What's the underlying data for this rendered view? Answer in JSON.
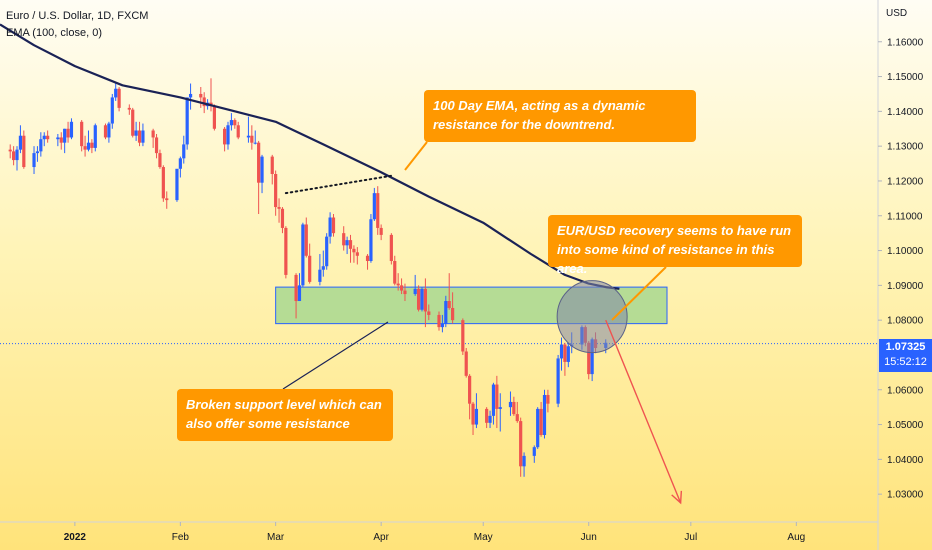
{
  "legend": {
    "symbol": "Euro / U.S. Dollar, 1D, FXCM",
    "indicator": "EMA (100, close, 0)"
  },
  "currency": "USD",
  "last_price": {
    "value": "1.07325",
    "countdown": "15:52:12"
  },
  "callouts": [
    {
      "text": "100 Day EMA, acting as a dynamic resistance for the downtrend."
    },
    {
      "text": "EUR/USD recovery seems to have run into some kind of resistance in this area."
    },
    {
      "text": "Broken support level which can also offer some resistance"
    }
  ],
  "colors": {
    "up": "#2962ff",
    "down": "#ef5350",
    "ema": "#1a2256",
    "zone_fill": "#a8d890",
    "zone_border": "#2962ff",
    "callout": "#ff9800",
    "arrow": "#ef5350"
  },
  "chart_data": {
    "type": "candlestick",
    "title": "Euro / U.S. Dollar, 1D, FXCM",
    "xlabel": "",
    "ylabel": "USD",
    "ylim": [
      1.022,
      1.172
    ],
    "y_ticks": [
      "1.16000",
      "1.15000",
      "1.14000",
      "1.13000",
      "1.12000",
      "1.11000",
      "1.10000",
      "1.09000",
      "1.08000",
      "1.06000",
      "1.05000",
      "1.04000",
      "1.03000"
    ],
    "x_ticks": [
      "2022",
      "Feb",
      "Mar",
      "Apr",
      "May",
      "Jun",
      "Jul",
      "Aug"
    ],
    "x_tick_dates": [
      "2022-01-01",
      "2022-02-01",
      "2022-03-01",
      "2022-04-01",
      "2022-05-01",
      "2022-06-01",
      "2022-07-01",
      "2022-08-01"
    ],
    "x_range": [
      "2021-12-10",
      "2022-08-25"
    ],
    "current_price": 1.07325,
    "ema": {
      "name": "EMA (100, close, 0)",
      "points": [
        [
          "2021-12-10",
          1.165
        ],
        [
          "2021-12-20",
          1.159
        ],
        [
          "2022-01-01",
          1.153
        ],
        [
          "2022-01-15",
          1.1475
        ],
        [
          "2022-02-01",
          1.144
        ],
        [
          "2022-02-15",
          1.1405
        ],
        [
          "2022-03-01",
          1.137
        ],
        [
          "2022-03-15",
          1.1305
        ],
        [
          "2022-04-01",
          1.1225
        ],
        [
          "2022-04-15",
          1.1155
        ],
        [
          "2022-05-01",
          1.108
        ],
        [
          "2022-05-15",
          1.099
        ],
        [
          "2022-05-25",
          1.093
        ],
        [
          "2022-06-01",
          1.0905
        ],
        [
          "2022-06-06",
          1.0895
        ],
        [
          "2022-06-10",
          1.089
        ]
      ]
    },
    "ohlc": [
      [
        "2021-12-13",
        1.129,
        1.1305,
        1.1265,
        1.1285
      ],
      [
        "2021-12-14",
        1.1285,
        1.13,
        1.1245,
        1.126
      ],
      [
        "2021-12-15",
        1.126,
        1.13,
        1.123,
        1.129
      ],
      [
        "2021-12-16",
        1.129,
        1.136,
        1.128,
        1.133
      ],
      [
        "2021-12-17",
        1.133,
        1.1345,
        1.1235,
        1.124
      ],
      [
        "2021-12-20",
        1.124,
        1.13,
        1.122,
        1.128
      ],
      [
        "2021-12-21",
        1.128,
        1.13,
        1.1255,
        1.1285
      ],
      [
        "2021-12-22",
        1.1285,
        1.134,
        1.127,
        1.132
      ],
      [
        "2021-12-23",
        1.132,
        1.134,
        1.13,
        1.133
      ],
      [
        "2021-12-24",
        1.133,
        1.1345,
        1.131,
        1.132
      ],
      [
        "2021-12-27",
        1.132,
        1.1335,
        1.13,
        1.1325
      ],
      [
        "2021-12-28",
        1.1325,
        1.134,
        1.129,
        1.131
      ],
      [
        "2021-12-29",
        1.131,
        1.135,
        1.128,
        1.135
      ],
      [
        "2021-12-30",
        1.135,
        1.137,
        1.131,
        1.1325
      ],
      [
        "2021-12-31",
        1.1325,
        1.138,
        1.132,
        1.137
      ],
      [
        "2022-01-03",
        1.137,
        1.1375,
        1.1285,
        1.13
      ],
      [
        "2022-01-04",
        1.13,
        1.133,
        1.127,
        1.129
      ],
      [
        "2022-01-05",
        1.129,
        1.1345,
        1.1285,
        1.131
      ],
      [
        "2022-01-06",
        1.131,
        1.132,
        1.128,
        1.1295
      ],
      [
        "2022-01-07",
        1.1295,
        1.1365,
        1.1285,
        1.136
      ],
      [
        "2022-01-10",
        1.136,
        1.1365,
        1.132,
        1.1325
      ],
      [
        "2022-01-11",
        1.1325,
        1.137,
        1.131,
        1.1365
      ],
      [
        "2022-01-12",
        1.1365,
        1.145,
        1.135,
        1.144
      ],
      [
        "2022-01-13",
        1.144,
        1.148,
        1.143,
        1.1465
      ],
      [
        "2022-01-14",
        1.1465,
        1.147,
        1.14,
        1.141
      ],
      [
        "2022-01-17",
        1.141,
        1.142,
        1.139,
        1.1405
      ],
      [
        "2022-01-18",
        1.1405,
        1.141,
        1.1325,
        1.133
      ],
      [
        "2022-01-19",
        1.133,
        1.137,
        1.1315,
        1.1345
      ],
      [
        "2022-01-20",
        1.1345,
        1.137,
        1.13,
        1.131
      ],
      [
        "2022-01-21",
        1.131,
        1.1365,
        1.13,
        1.1345
      ],
      [
        "2022-01-24",
        1.1345,
        1.135,
        1.1295,
        1.1325
      ],
      [
        "2022-01-25",
        1.1325,
        1.1335,
        1.1265,
        1.128
      ],
      [
        "2022-01-26",
        1.128,
        1.129,
        1.1235,
        1.124
      ],
      [
        "2022-01-27",
        1.124,
        1.1245,
        1.114,
        1.115
      ],
      [
        "2022-01-28",
        1.115,
        1.117,
        1.112,
        1.1145
      ],
      [
        "2022-01-31",
        1.1145,
        1.123,
        1.114,
        1.1235
      ],
      [
        "2022-02-01",
        1.1235,
        1.127,
        1.121,
        1.1265
      ],
      [
        "2022-02-02",
        1.1265,
        1.133,
        1.125,
        1.1305
      ],
      [
        "2022-02-03",
        1.1305,
        1.144,
        1.129,
        1.144
      ],
      [
        "2022-02-04",
        1.144,
        1.148,
        1.1405,
        1.145
      ],
      [
        "2022-02-07",
        1.145,
        1.147,
        1.141,
        1.144
      ],
      [
        "2022-02-08",
        1.144,
        1.1455,
        1.1395,
        1.1415
      ],
      [
        "2022-02-09",
        1.1415,
        1.1435,
        1.1405,
        1.1425
      ],
      [
        "2022-02-10",
        1.1425,
        1.1495,
        1.14,
        1.1415
      ],
      [
        "2022-02-11",
        1.1415,
        1.142,
        1.1345,
        1.135
      ],
      [
        "2022-02-14",
        1.135,
        1.1355,
        1.1285,
        1.1305
      ],
      [
        "2022-02-15",
        1.1305,
        1.137,
        1.129,
        1.136
      ],
      [
        "2022-02-16",
        1.136,
        1.1395,
        1.1345,
        1.1375
      ],
      [
        "2022-02-17",
        1.1375,
        1.138,
        1.135,
        1.136
      ],
      [
        "2022-02-18",
        1.136,
        1.137,
        1.132,
        1.1325
      ],
      [
        "2022-02-21",
        1.1325,
        1.1385,
        1.131,
        1.133
      ],
      [
        "2022-02-22",
        1.133,
        1.136,
        1.129,
        1.131
      ],
      [
        "2022-02-23",
        1.131,
        1.1345,
        1.1305,
        1.131
      ],
      [
        "2022-02-24",
        1.131,
        1.1315,
        1.1105,
        1.1195
      ],
      [
        "2022-02-25",
        1.1195,
        1.1275,
        1.1165,
        1.127
      ],
      [
        "2022-02-28",
        1.127,
        1.1275,
        1.119,
        1.122
      ],
      [
        "2022-03-01",
        1.122,
        1.123,
        1.11,
        1.1125
      ],
      [
        "2022-03-02",
        1.1125,
        1.115,
        1.108,
        1.112
      ],
      [
        "2022-03-03",
        1.112,
        1.1125,
        1.105,
        1.1065
      ],
      [
        "2022-03-04",
        1.1065,
        1.107,
        1.092,
        1.093
      ],
      [
        "2022-03-07",
        1.093,
        1.0935,
        1.0805,
        1.0855
      ],
      [
        "2022-03-08",
        1.0855,
        1.0935,
        1.0855,
        1.09
      ],
      [
        "2022-03-09",
        1.09,
        1.108,
        1.0895,
        1.1075
      ],
      [
        "2022-03-10",
        1.1075,
        1.1095,
        1.098,
        1.0985
      ],
      [
        "2022-03-11",
        1.0985,
        1.102,
        1.0905,
        1.091
      ],
      [
        "2022-03-14",
        1.091,
        1.099,
        1.09,
        1.0945
      ],
      [
        "2022-03-15",
        1.0945,
        1.1,
        1.0925,
        1.0955
      ],
      [
        "2022-03-16",
        1.0955,
        1.105,
        1.0945,
        1.104
      ],
      [
        "2022-03-17",
        1.104,
        1.111,
        1.102,
        1.1095
      ],
      [
        "2022-03-18",
        1.1095,
        1.1105,
        1.104,
        1.105
      ],
      [
        "2022-03-21",
        1.105,
        1.107,
        1.1,
        1.1015
      ],
      [
        "2022-03-22",
        1.1015,
        1.104,
        1.099,
        1.103
      ],
      [
        "2022-03-23",
        1.103,
        1.1045,
        1.0965,
        1.1005
      ],
      [
        "2022-03-24",
        1.1005,
        1.1015,
        1.0965,
        1.0995
      ],
      [
        "2022-03-25",
        1.0995,
        1.101,
        1.096,
        1.0985
      ],
      [
        "2022-03-28",
        1.0985,
        1.099,
        1.0945,
        1.097
      ],
      [
        "2022-03-29",
        1.097,
        1.1105,
        1.0965,
        1.109
      ],
      [
        "2022-03-30",
        1.109,
        1.118,
        1.1085,
        1.1165
      ],
      [
        "2022-03-31",
        1.1165,
        1.1185,
        1.1045,
        1.1065
      ],
      [
        "2022-04-01",
        1.1065,
        1.1075,
        1.103,
        1.1045
      ],
      [
        "2022-04-04",
        1.1045,
        1.105,
        1.096,
        1.097
      ],
      [
        "2022-04-05",
        1.097,
        1.0985,
        1.09,
        1.0905
      ],
      [
        "2022-04-06",
        1.0905,
        1.0935,
        1.0885,
        1.09
      ],
      [
        "2022-04-07",
        1.09,
        1.092,
        1.0875,
        1.0885
      ],
      [
        "2022-04-08",
        1.0885,
        1.0905,
        1.0855,
        1.0875
      ],
      [
        "2022-04-11",
        1.0875,
        1.093,
        1.087,
        1.089
      ],
      [
        "2022-04-12",
        1.089,
        1.09,
        1.0825,
        1.083
      ],
      [
        "2022-04-13",
        1.083,
        1.0895,
        1.0825,
        1.089
      ],
      [
        "2022-04-14",
        1.089,
        1.092,
        1.078,
        1.0825
      ],
      [
        "2022-04-15",
        1.0825,
        1.0845,
        1.08,
        1.0815
      ],
      [
        "2022-04-18",
        1.0815,
        1.0825,
        1.077,
        1.078
      ],
      [
        "2022-04-19",
        1.078,
        1.0815,
        1.0765,
        1.079
      ],
      [
        "2022-04-20",
        1.079,
        1.087,
        1.078,
        1.0855
      ],
      [
        "2022-04-21",
        1.0855,
        1.0935,
        1.083,
        1.0835
      ],
      [
        "2022-04-22",
        1.0835,
        1.088,
        1.079,
        1.08
      ],
      [
        "2022-04-25",
        1.08,
        1.0805,
        1.07,
        1.071
      ],
      [
        "2022-04-26",
        1.071,
        1.072,
        1.0635,
        1.064
      ],
      [
        "2022-04-27",
        1.064,
        1.0645,
        1.0515,
        1.056
      ],
      [
        "2022-04-28",
        1.056,
        1.0565,
        1.047,
        1.05
      ],
      [
        "2022-04-29",
        1.05,
        1.059,
        1.049,
        1.0545
      ],
      [
        "2022-05-02",
        1.0545,
        1.055,
        1.049,
        1.0505
      ],
      [
        "2022-05-03",
        1.0505,
        1.054,
        1.049,
        1.0525
      ],
      [
        "2022-05-04",
        1.0525,
        1.062,
        1.05,
        1.0615
      ],
      [
        "2022-05-05",
        1.0615,
        1.064,
        1.049,
        1.0545
      ],
      [
        "2022-05-06",
        1.0545,
        1.059,
        1.048,
        1.055
      ],
      [
        "2022-05-09",
        1.055,
        1.0595,
        1.0525,
        1.0565
      ],
      [
        "2022-05-10",
        1.0565,
        1.058,
        1.0525,
        1.053
      ],
      [
        "2022-05-11",
        1.053,
        1.0565,
        1.0505,
        1.051
      ],
      [
        "2022-05-12",
        1.051,
        1.052,
        1.035,
        1.038
      ],
      [
        "2022-05-13",
        1.038,
        1.042,
        1.035,
        1.041
      ],
      [
        "2022-05-16",
        1.041,
        1.044,
        1.039,
        1.0435
      ],
      [
        "2022-05-17",
        1.0435,
        1.055,
        1.043,
        1.0545
      ],
      [
        "2022-05-18",
        1.0545,
        1.0565,
        1.0465,
        1.047
      ],
      [
        "2022-05-19",
        1.047,
        1.06,
        1.046,
        1.0585
      ],
      [
        "2022-05-20",
        1.0585,
        1.06,
        1.0535,
        1.056
      ],
      [
        "2022-05-23",
        1.056,
        1.07,
        1.055,
        1.069
      ],
      [
        "2022-05-24",
        1.069,
        1.075,
        1.0655,
        1.073
      ],
      [
        "2022-05-25",
        1.073,
        1.0735,
        1.064,
        1.068
      ],
      [
        "2022-05-26",
        1.068,
        1.0735,
        1.0665,
        1.0725
      ],
      [
        "2022-05-27",
        1.0725,
        1.0765,
        1.0705,
        1.073
      ],
      [
        "2022-05-30",
        1.073,
        1.0785,
        1.0715,
        1.078
      ],
      [
        "2022-05-31",
        1.078,
        1.0785,
        1.0725,
        1.0735
      ],
      [
        "2022-06-01",
        1.0735,
        1.074,
        1.063,
        1.0645
      ],
      [
        "2022-06-02",
        1.0645,
        1.075,
        1.0625,
        1.0745
      ],
      [
        "2022-06-03",
        1.0745,
        1.0765,
        1.0705,
        1.072
      ],
      [
        "2022-06-06",
        1.072,
        1.0745,
        1.0705,
        1.0735
      ]
    ],
    "annotations": {
      "resistance_zone": {
        "y_low": 1.079,
        "y_high": 1.0895,
        "x_start": "2022-03-01",
        "x_end": "2022-06-24"
      },
      "circle": {
        "x": "2022-06-02",
        "y": 1.081
      },
      "dotted_trendline": [
        [
          "2022-03-04",
          1.1165
        ],
        [
          "2022-04-04",
          1.1215
        ]
      ],
      "projection_arrow": [
        [
          "2022-06-06",
          1.08
        ],
        [
          "2022-06-28",
          1.0275
        ]
      ]
    }
  }
}
